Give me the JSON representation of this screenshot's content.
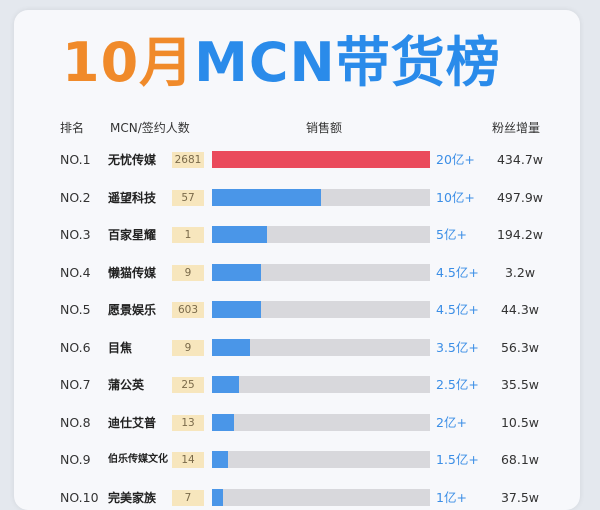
{
  "title": {
    "month": "10月",
    "main": "MCN带货榜"
  },
  "headers": {
    "rank": "排名",
    "mcn": "MCN/签约人数",
    "sales": "销售额",
    "fans": "粉丝增量"
  },
  "colors": {
    "top_bar": "#ea4a5c",
    "bar": "#4a96e8",
    "track": "#d8d8dc"
  },
  "chart_data": {
    "type": "bar",
    "orientation": "horizontal",
    "value_unit": "亿",
    "rows": [
      {
        "rank": "NO.1",
        "name": "无忧传媒",
        "count": "2681",
        "sales": 20,
        "sales_label": "20亿+",
        "fans": "434.7w"
      },
      {
        "rank": "NO.2",
        "name": "遥望科技",
        "count": "57",
        "sales": 10,
        "sales_label": "10亿+",
        "fans": "497.9w"
      },
      {
        "rank": "NO.3",
        "name": "百家星耀",
        "count": "1",
        "sales": 5,
        "sales_label": "5亿+",
        "fans": "194.2w"
      },
      {
        "rank": "NO.4",
        "name": "懒猫传媒",
        "count": "9",
        "sales": 4.5,
        "sales_label": "4.5亿+",
        "fans": "3.2w"
      },
      {
        "rank": "NO.5",
        "name": "愿景娱乐",
        "count": "603",
        "sales": 4.5,
        "sales_label": "4.5亿+",
        "fans": "44.3w"
      },
      {
        "rank": "NO.6",
        "name": "目焦",
        "count": "9",
        "sales": 3.5,
        "sales_label": "3.5亿+",
        "fans": "56.3w"
      },
      {
        "rank": "NO.7",
        "name": "蒲公英",
        "count": "25",
        "sales": 2.5,
        "sales_label": "2.5亿+",
        "fans": "35.5w"
      },
      {
        "rank": "NO.8",
        "name": "迪仕艾普",
        "count": "13",
        "sales": 2,
        "sales_label": "2亿+",
        "fans": "10.5w"
      },
      {
        "rank": "NO.9",
        "name": "伯乐传媒文化",
        "count": "14",
        "sales": 1.5,
        "sales_label": "1.5亿+",
        "fans": "68.1w"
      },
      {
        "rank": "NO.10",
        "name": "完美家族",
        "count": "7",
        "sales": 1,
        "sales_label": "1亿+",
        "fans": "37.5w"
      }
    ]
  }
}
